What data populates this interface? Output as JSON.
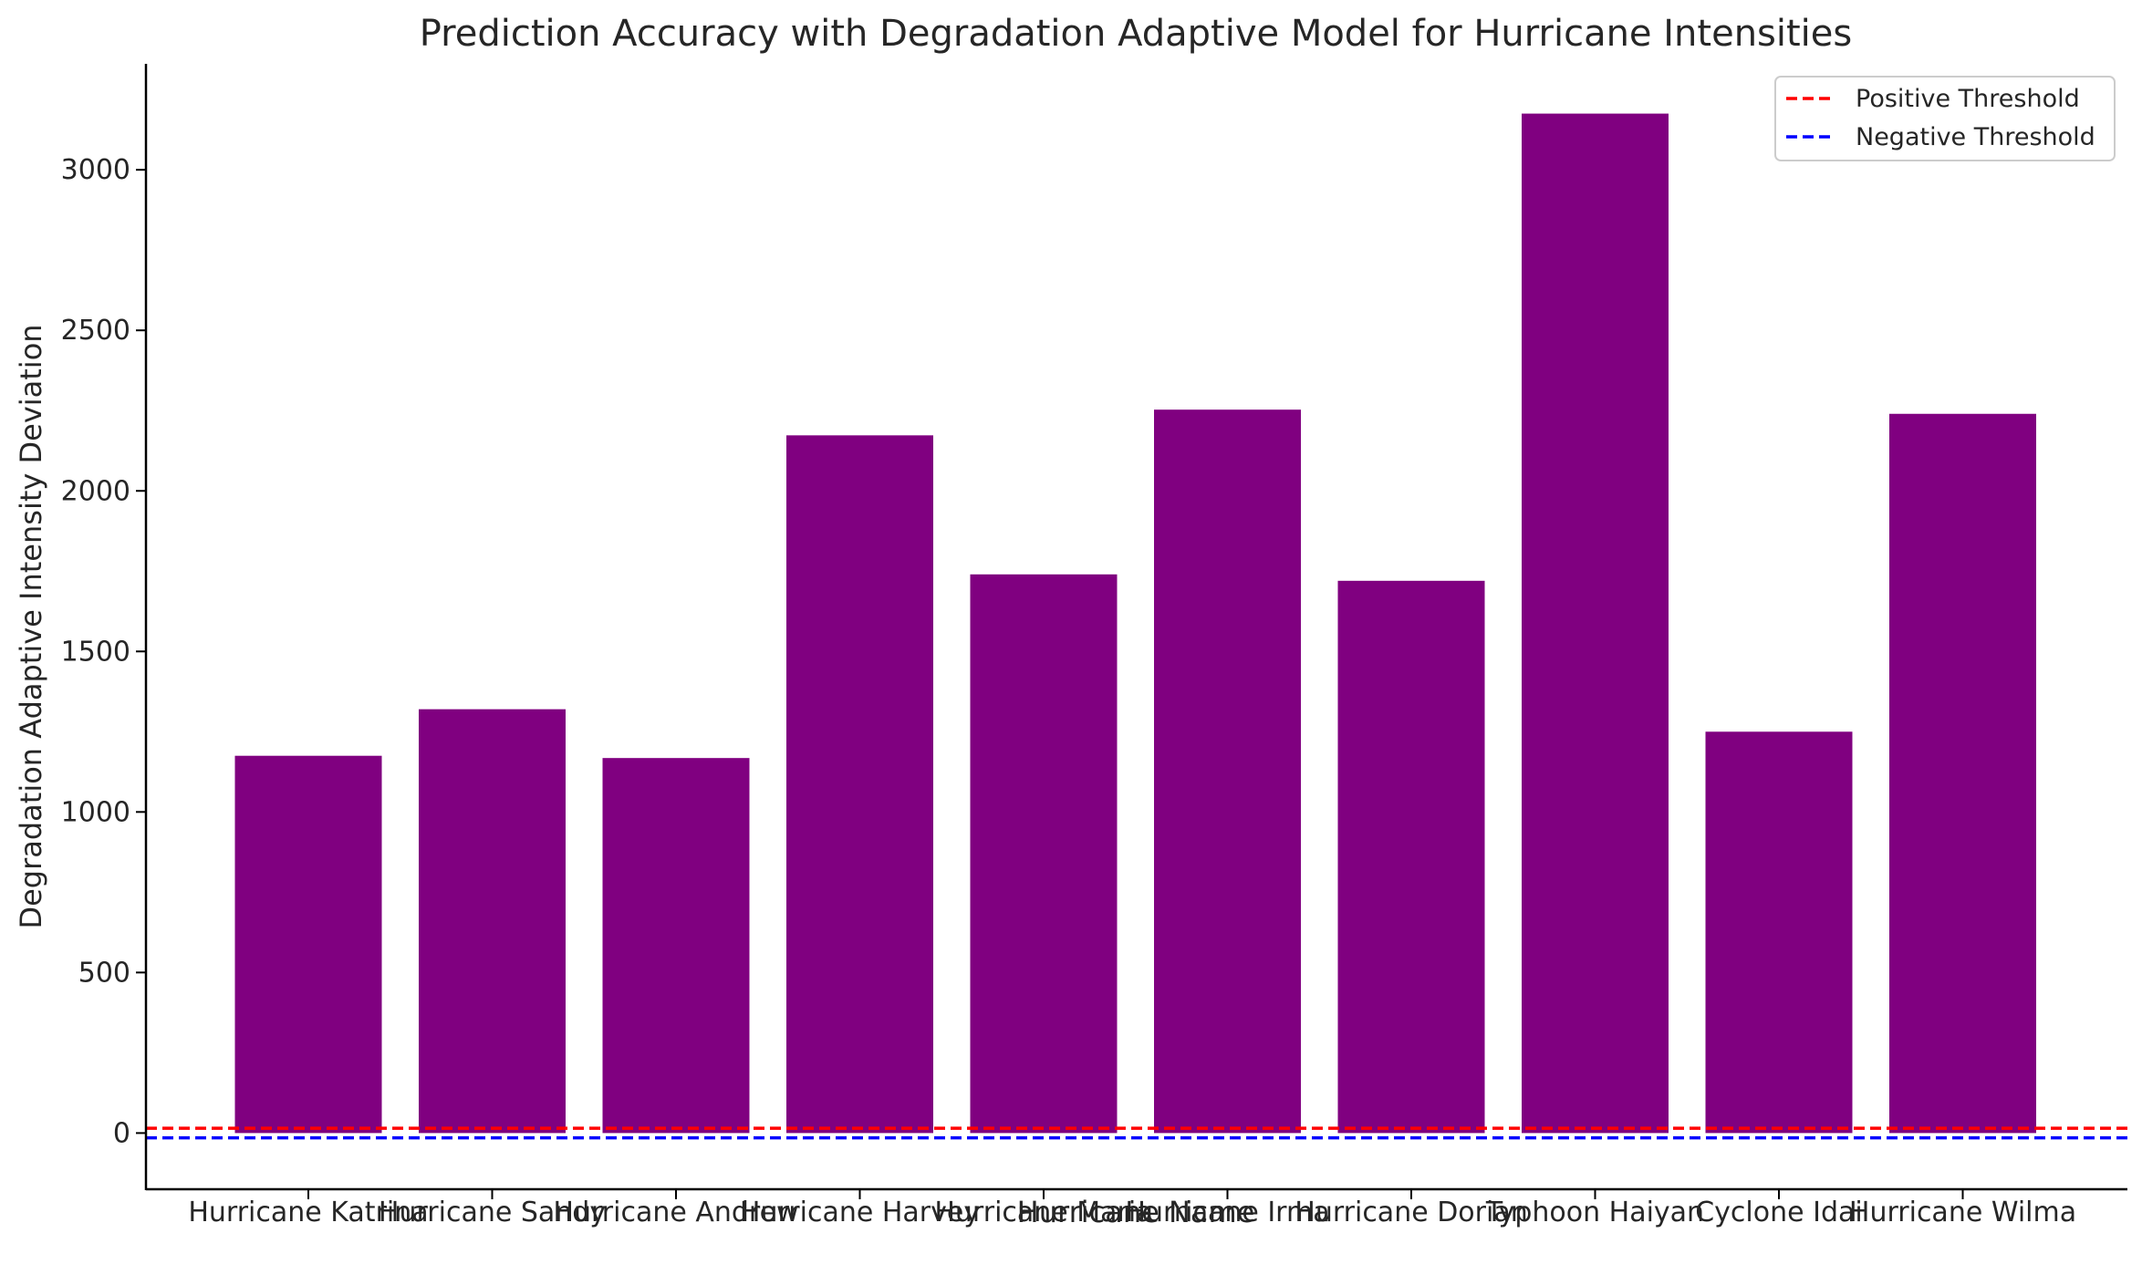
{
  "chart_data": {
    "type": "bar",
    "title": "Prediction Accuracy with Degradation Adaptive Model for Hurricane Intensities",
    "xlabel": "Hurricane Name",
    "ylabel": "Degradation Adaptive Intensity Deviation",
    "categories": [
      "Hurricane Katrina",
      "Hurricane Sandy",
      "Hurricane Andrew",
      "Hurricane Harvey",
      "Hurricane Maria",
      "Hurricane Irma",
      "Hurricane Dorian",
      "Typhoon Haiyan",
      "Cyclone Idai",
      "Hurricane Wilma"
    ],
    "values": [
      1175,
      1320,
      1168,
      2173,
      1740,
      2253,
      1720,
      3175,
      1250,
      2240
    ],
    "ylim": [
      -175,
      3330
    ],
    "yticks": [
      0,
      500,
      1000,
      1500,
      2000,
      2500,
      3000
    ],
    "bar_color": "#800080",
    "thresholds": [
      {
        "name": "Positive Threshold",
        "value": 15,
        "color": "#ff0000",
        "style": "dashed"
      },
      {
        "name": "Negative Threshold",
        "value": -15,
        "color": "#0000ff",
        "style": "dashed"
      }
    ],
    "legend_position": "top-right",
    "grid": false
  }
}
